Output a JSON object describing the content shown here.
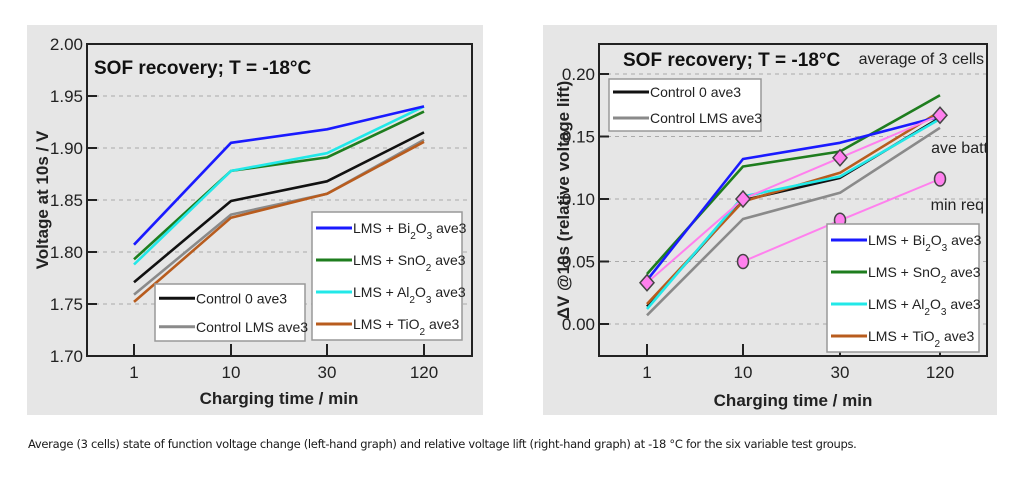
{
  "caption": "Average (3 cells) state of function voltage change (left-hand graph) and relative voltage lift (right-hand graph) at -18 °C for the six variable test groups.",
  "chart_data": [
    {
      "type": "line",
      "title": "SOF recovery; T = -18°C",
      "xlabel": "Charging time / min",
      "ylabel": "Voltage at 10s / V",
      "categories": [
        "1",
        "10",
        "30",
        "120"
      ],
      "ylim": [
        1.7,
        2.0
      ],
      "yticks": [
        "1.70",
        "1.75",
        "1.80",
        "1.85",
        "1.90",
        "1.95",
        "2.00"
      ],
      "grid": "horizontal dashed",
      "series": [
        {
          "name": "LMS + Bi2O3 ave3",
          "label_parts": [
            "LMS + Bi",
            "2",
            "O",
            "3",
            " ave3"
          ],
          "color": "#1a1aff",
          "values": [
            1.807,
            1.905,
            1.918,
            1.94
          ]
        },
        {
          "name": "LMS + SnO2 ave3",
          "label_parts": [
            "LMS + SnO",
            "2",
            "",
            "",
            " ave3"
          ],
          "color": "#1e7d1e",
          "values": [
            1.793,
            1.878,
            1.891,
            1.935
          ]
        },
        {
          "name": "LMS + Al2O3 ave3",
          "label_parts": [
            "LMS + Al",
            "2",
            "O",
            "3",
            " ave3"
          ],
          "color": "#22e8e8",
          "values": [
            1.788,
            1.878,
            1.895,
            1.94
          ]
        },
        {
          "name": "LMS + TiO2 ave3",
          "label_parts": [
            "LMS + TiO",
            "2",
            "",
            "",
            " ave3"
          ],
          "color": "#b85c1e",
          "values": [
            1.752,
            1.833,
            1.856,
            1.906
          ]
        },
        {
          "name": "Control 0 ave3",
          "label_parts": [
            "Control 0 ave3",
            "",
            "",
            "",
            ""
          ],
          "color": "#111111",
          "values": [
            1.771,
            1.849,
            1.868,
            1.915
          ]
        },
        {
          "name": "Control LMS ave3",
          "label_parts": [
            "Control LMS ave3",
            "",
            "",
            "",
            ""
          ],
          "color": "#8a8a8a",
          "values": [
            1.759,
            1.836,
            1.856,
            1.908
          ]
        }
      ],
      "legends": [
        {
          "position": "bottom-center",
          "items": [
            "Control 0 ave3",
            "Control LMS ave3"
          ]
        },
        {
          "position": "bottom-right",
          "items": [
            "LMS + Bi2O3 ave3",
            "LMS + SnO2 ave3",
            "LMS + Al2O3 ave3",
            "LMS + TiO2 ave3"
          ]
        }
      ]
    },
    {
      "type": "line",
      "title": "SOF recovery; T = -18°C",
      "annotation": "average of 3 cells",
      "xlabel": "Charging time / min",
      "ylabel": "ΔV @10s (relative voltage lift)",
      "categories": [
        "1",
        "10",
        "30",
        "120"
      ],
      "ylim": [
        -0.025,
        0.225
      ],
      "yticks": [
        "0.00",
        "0.05",
        "0.10",
        "0.15",
        "0.20"
      ],
      "grid": "horizontal dashed",
      "series": [
        {
          "name": "LMS + Bi2O3 ave3",
          "label_parts": [
            "LMS + Bi",
            "2",
            "O",
            "3",
            " ave3"
          ],
          "color": "#1a1aff",
          "values": [
            0.035,
            0.132,
            0.145,
            0.166
          ]
        },
        {
          "name": "LMS + SnO2 ave3",
          "label_parts": [
            "LMS + SnO",
            "2",
            "",
            "",
            " ave3"
          ],
          "color": "#1e7d1e",
          "values": [
            0.04,
            0.126,
            0.138,
            0.183
          ]
        },
        {
          "name": "LMS + Al2O3 ave3",
          "label_parts": [
            "LMS + Al",
            "2",
            "O",
            "3",
            " ave3"
          ],
          "color": "#22e8e8",
          "values": [
            0.012,
            0.102,
            0.118,
            0.164
          ]
        },
        {
          "name": "LMS + TiO2 ave3",
          "label_parts": [
            "LMS + TiO",
            "2",
            "",
            "",
            " ave3"
          ],
          "color": "#b85c1e",
          "values": [
            0.016,
            0.098,
            0.121,
            0.17
          ]
        },
        {
          "name": "Control 0 ave3",
          "label_parts": [
            "Control 0 ave3",
            "",
            "",
            "",
            ""
          ],
          "color": "#111111",
          "values": [
            0.014,
            0.099,
            0.117,
            0.165
          ]
        },
        {
          "name": "Control LMS ave3",
          "label_parts": [
            "Control LMS ave3",
            "",
            "",
            "",
            ""
          ],
          "color": "#8a8a8a",
          "values": [
            0.007,
            0.084,
            0.105,
            0.157
          ]
        }
      ],
      "reference_series": [
        {
          "name": "ave batt",
          "marker": "diamond",
          "color": "#ff80ee",
          "values": [
            0.033,
            0.1,
            0.133,
            0.167
          ]
        },
        {
          "name": "min req",
          "marker": "circle",
          "color": "#ff80ee",
          "values": [
            null,
            0.05,
            0.083,
            0.116
          ]
        }
      ],
      "legends": [
        {
          "position": "top-left",
          "items": [
            "Control 0 ave3",
            "Control LMS ave3"
          ]
        },
        {
          "position": "bottom-right",
          "items": [
            "LMS + Bi2O3 ave3",
            "LMS + SnO2 ave3",
            "LMS + Al2O3 ave3",
            "LMS + TiO2 ave3"
          ]
        }
      ]
    }
  ]
}
